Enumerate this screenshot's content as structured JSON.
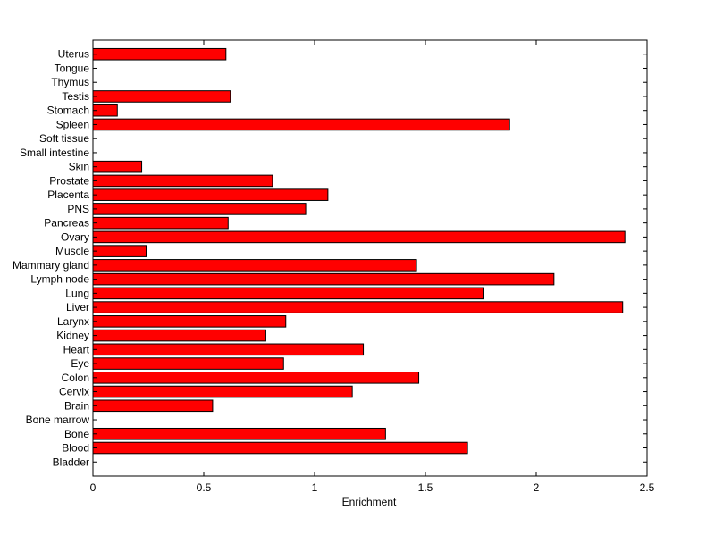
{
  "chart_data": {
    "type": "bar",
    "orientation": "horizontal",
    "title": "",
    "xlabel": "Enrichment",
    "ylabel": "",
    "xlim": [
      0,
      2.5
    ],
    "xticks": [
      0,
      0.5,
      1,
      1.5,
      2,
      2.5
    ],
    "xtick_labels": [
      "0",
      "0.5",
      "1",
      "1.5",
      "2",
      "2.5"
    ],
    "grid": false,
    "bar_color": "#ff0000",
    "categories": [
      "Bladder",
      "Blood",
      "Bone",
      "Bone marrow",
      "Brain",
      "Cervix",
      "Colon",
      "Eye",
      "Heart",
      "Kidney",
      "Larynx",
      "Liver",
      "Lung",
      "Lymph node",
      "Mammary gland",
      "Muscle",
      "Ovary",
      "Pancreas",
      "PNS",
      "Placenta",
      "Prostate",
      "Skin",
      "Small intestine",
      "Soft tissue",
      "Spleen",
      "Stomach",
      "Testis",
      "Thymus",
      "Tongue",
      "Uterus"
    ],
    "values": [
      0,
      1.69,
      1.32,
      0,
      0.54,
      1.17,
      1.47,
      0.86,
      1.22,
      0.78,
      0.87,
      2.39,
      1.76,
      2.08,
      1.46,
      0.24,
      2.4,
      0.61,
      0.96,
      1.06,
      0.81,
      0.22,
      0,
      0,
      1.88,
      0.11,
      0.62,
      0,
      0,
      0.6
    ]
  }
}
